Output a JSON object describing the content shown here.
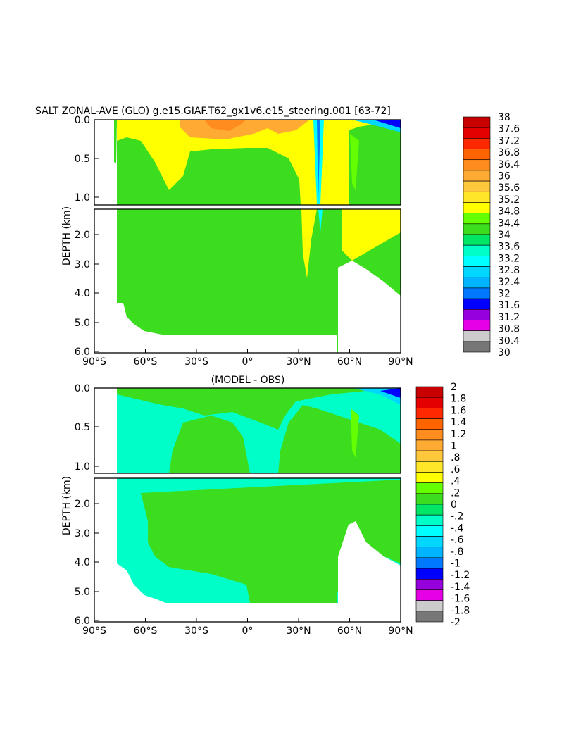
{
  "chart_data": [
    {
      "type": "heatmap",
      "title": "SALT ZONAL-AVE (GLO) g.e15.GIAF.T62_gx1v6.e15_steering.001 [63-72]",
      "ylabel": "DEPTH (km)",
      "x_ticks": [
        "90°S",
        "60°S",
        "30°S",
        "0°",
        "30°N",
        "60°N",
        "90°N"
      ],
      "y_ticks_upper": [
        "0.0",
        "0.5",
        "1.0"
      ],
      "y_ticks_lower": [
        "2.0",
        "3.0",
        "4.0",
        "5.0",
        "6.0"
      ],
      "colorbar_labels": [
        "38",
        "37.6",
        "37.2",
        "36.8",
        "36.4",
        "36",
        "35.6",
        "35.2",
        "34.8",
        "34.4",
        "34",
        "33.6",
        "33.2",
        "32.8",
        "32.4",
        "32",
        "31.6",
        "31.2",
        "30.8",
        "30.4",
        "30"
      ],
      "colorbar_colors": [
        "#c80000",
        "#e40000",
        "#ff2800",
        "#ff6400",
        "#ff8c1e",
        "#ffaa32",
        "#ffc83c",
        "#ffe628",
        "#ffff00",
        "#64ff00",
        "#3cdc1e",
        "#00e664",
        "#00ffc8",
        "#00ffff",
        "#00d7ff",
        "#00b4ff",
        "#0078ff",
        "#0000ff",
        "#9600dc",
        "#e600e6",
        "#cccccc",
        "#777777"
      ]
    },
    {
      "type": "heatmap",
      "title": "(MODEL - OBS)",
      "ylabel": "DEPTH (km)",
      "x_ticks": [
        "90°S",
        "60°S",
        "30°S",
        "0°",
        "30°N",
        "60°N",
        "90°N"
      ],
      "y_ticks_upper": [
        "0.0",
        "0.5",
        "1.0"
      ],
      "y_ticks_lower": [
        "2.0",
        "3.0",
        "4.0",
        "5.0",
        "6.0"
      ],
      "colorbar_labels": [
        "2",
        "1.8",
        "1.6",
        "1.4",
        "1.2",
        "1",
        ".8",
        ".6",
        ".4",
        ".2",
        "0",
        "-.2",
        "-.4",
        "-.6",
        "-.8",
        "-1",
        "-1.2",
        "-1.4",
        "-1.6",
        "-1.8",
        "-2"
      ],
      "colorbar_colors": [
        "#c80000",
        "#e40000",
        "#ff2800",
        "#ff6400",
        "#ff8c1e",
        "#ffaa32",
        "#ffc83c",
        "#ffe628",
        "#ffff00",
        "#64ff00",
        "#3cdc1e",
        "#00e664",
        "#00ffc8",
        "#00ffff",
        "#00d7ff",
        "#00b4ff",
        "#0078ff",
        "#0000ff",
        "#9600dc",
        "#e600e6",
        "#cccccc",
        "#777777"
      ]
    }
  ]
}
